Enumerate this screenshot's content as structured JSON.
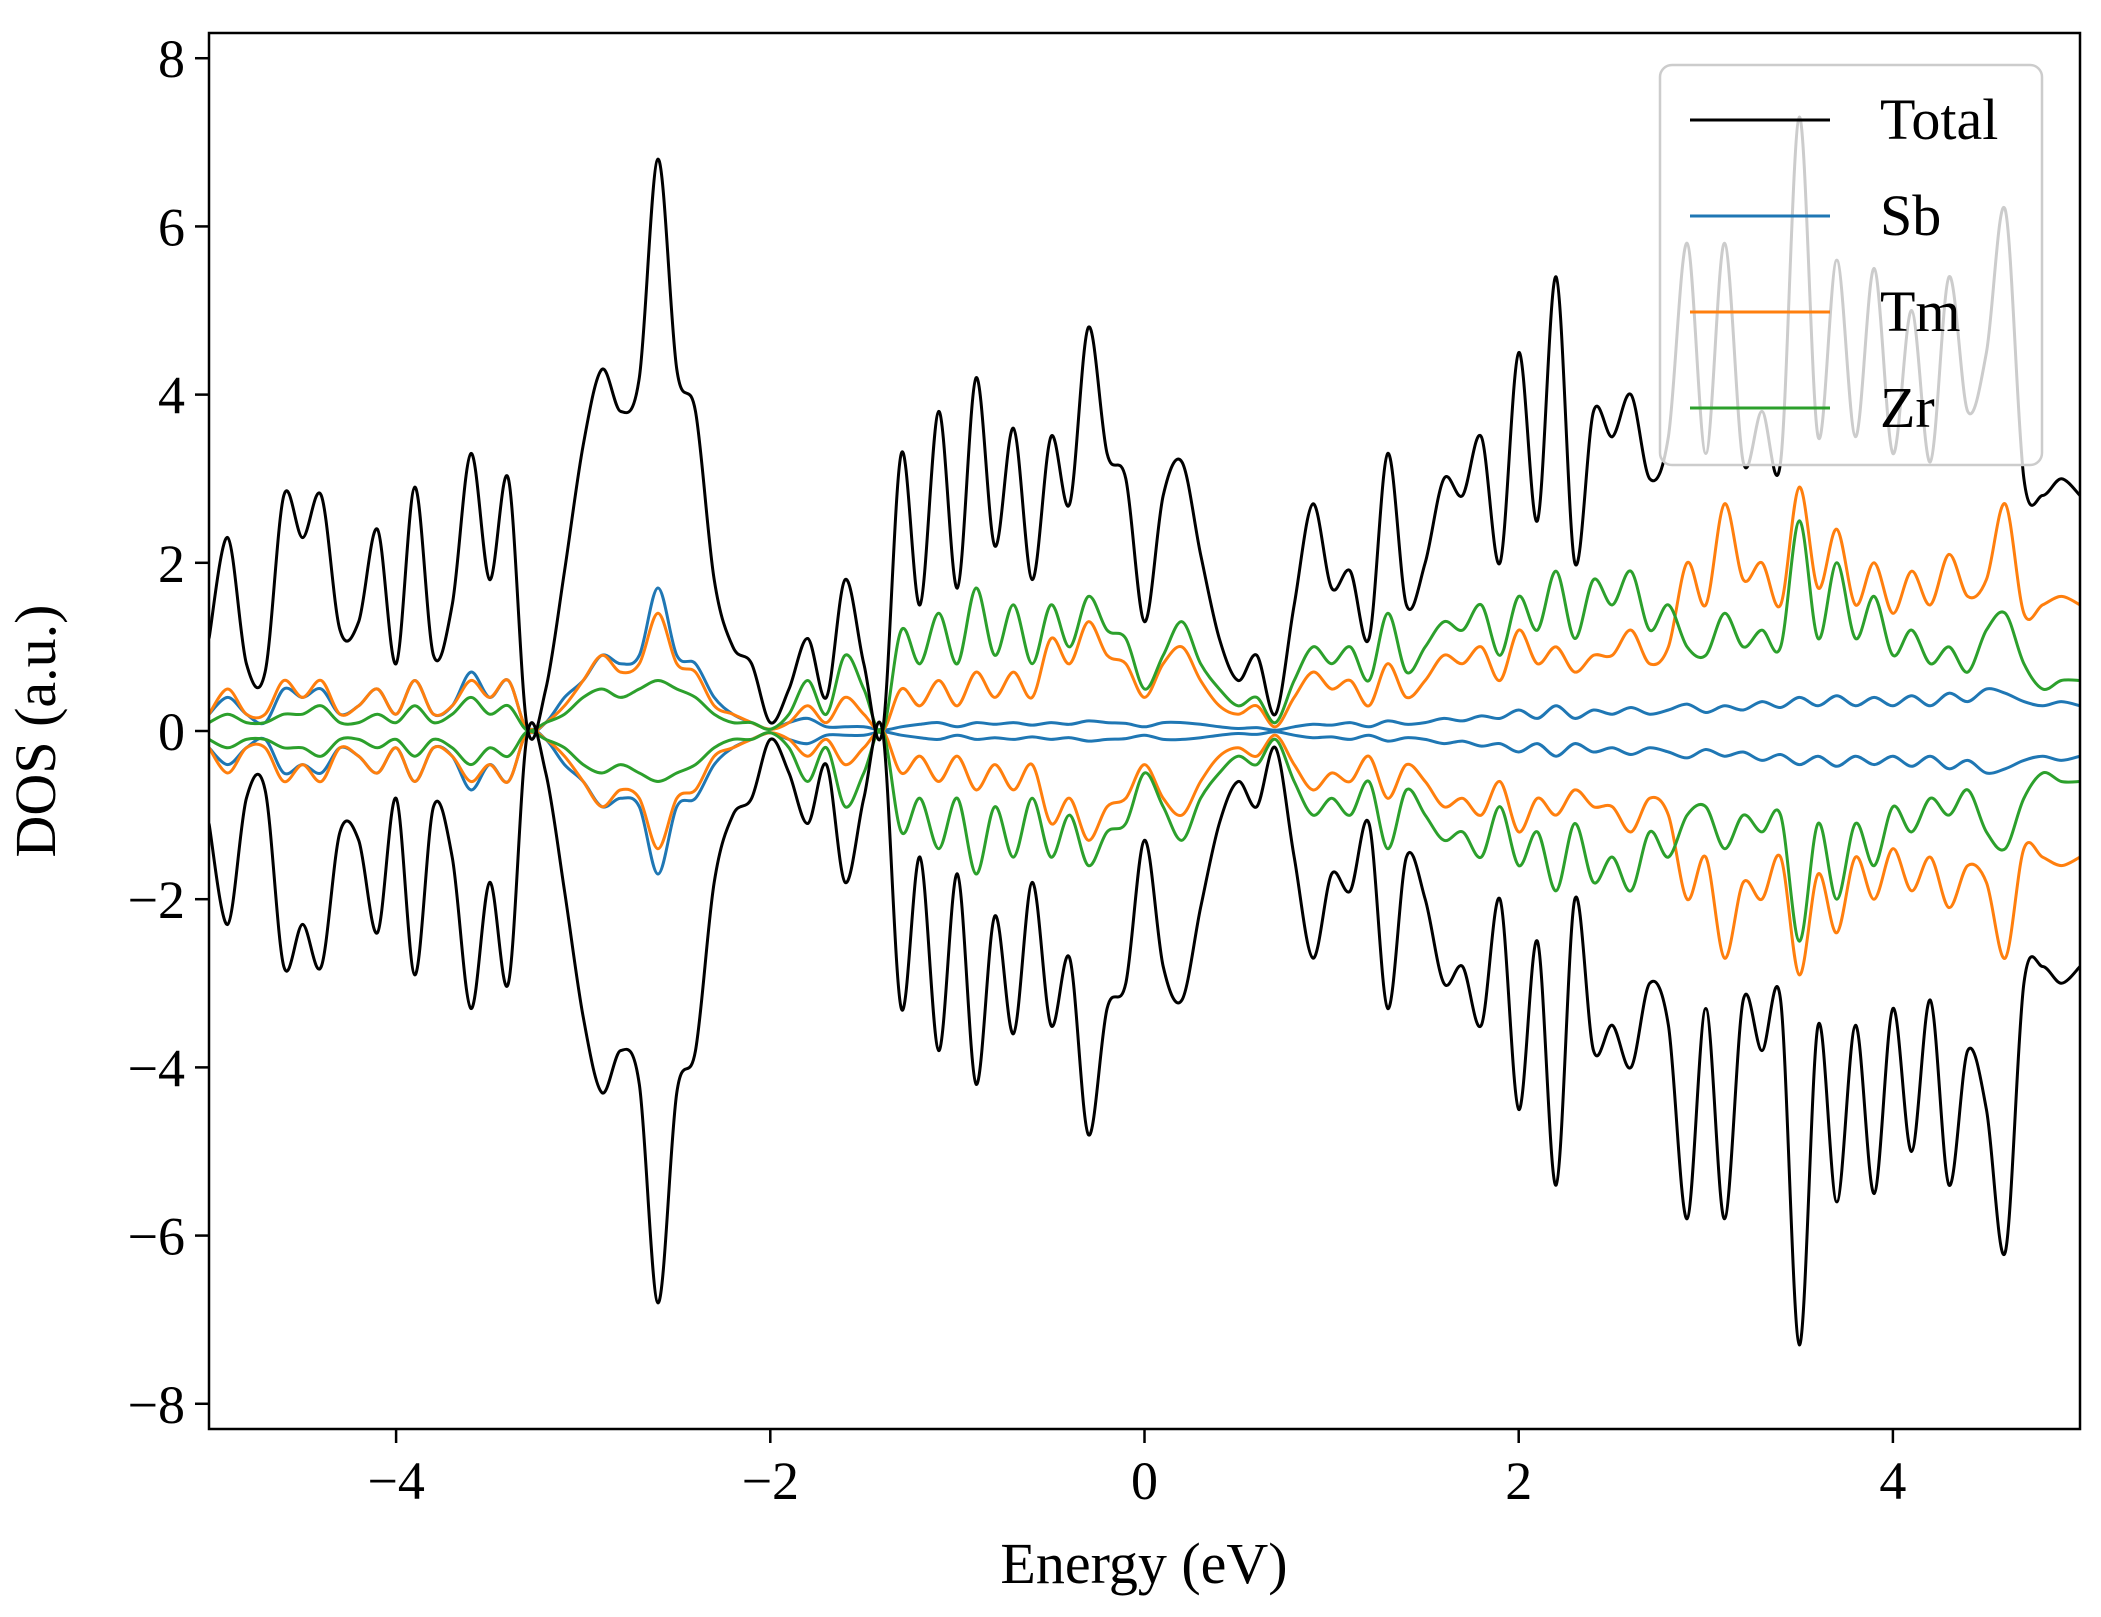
{
  "chart_data": {
    "type": "line",
    "title": "",
    "xlabel": "Energy (eV)",
    "ylabel": "DOS (a.u.)",
    "xlim": [
      -5,
      5
    ],
    "ylim": [
      -8.3,
      8.3
    ],
    "xticks": [
      -4,
      -2,
      0,
      2,
      4
    ],
    "xtick_labels": [
      "−4",
      "−2",
      "0",
      "2",
      "4"
    ],
    "yticks": [
      -8,
      -6,
      -4,
      -2,
      0,
      2,
      4,
      6,
      8
    ],
    "ytick_labels": [
      "−8",
      "−6",
      "−4",
      "−2",
      "0",
      "2",
      "4",
      "6",
      "8"
    ],
    "grid": false,
    "legend_position": "top-right",
    "mirrored": true,
    "x": [
      -5.0,
      -4.9,
      -4.8,
      -4.7,
      -4.6,
      -4.5,
      -4.4,
      -4.3,
      -4.2,
      -4.1,
      -4.0,
      -3.9,
      -3.8,
      -3.7,
      -3.6,
      -3.5,
      -3.4,
      -3.3,
      -3.2,
      -3.1,
      -3.0,
      -2.9,
      -2.8,
      -2.7,
      -2.6,
      -2.5,
      -2.4,
      -2.3,
      -2.2,
      -2.1,
      -2.0,
      -1.9,
      -1.8,
      -1.7,
      -1.6,
      -1.5,
      -1.4,
      -1.3,
      -1.2,
      -1.1,
      -1.0,
      -0.9,
      -0.8,
      -0.7,
      -0.6,
      -0.5,
      -0.4,
      -0.3,
      -0.2,
      -0.1,
      0.0,
      0.1,
      0.2,
      0.3,
      0.4,
      0.5,
      0.6,
      0.7,
      0.8,
      0.9,
      1.0,
      1.1,
      1.2,
      1.3,
      1.4,
      1.5,
      1.6,
      1.7,
      1.8,
      1.9,
      2.0,
      2.1,
      2.2,
      2.3,
      2.4,
      2.5,
      2.6,
      2.7,
      2.8,
      2.9,
      3.0,
      3.1,
      3.2,
      3.3,
      3.4,
      3.5,
      3.6,
      3.7,
      3.8,
      3.9,
      4.0,
      4.1,
      4.2,
      4.3,
      4.4,
      4.5,
      4.6,
      4.7,
      4.8,
      4.9,
      5.0
    ],
    "series": [
      {
        "name": "Total",
        "color": "#000000",
        "values": [
          1.1,
          2.3,
          0.8,
          0.7,
          2.8,
          2.3,
          2.8,
          1.2,
          1.3,
          2.4,
          0.8,
          2.9,
          0.9,
          1.5,
          3.3,
          1.8,
          3.0,
          0.05,
          0.5,
          1.9,
          3.4,
          4.3,
          3.8,
          4.2,
          6.8,
          4.3,
          3.8,
          1.8,
          1.0,
          0.8,
          0.1,
          0.5,
          1.1,
          0.4,
          1.8,
          0.8,
          0.0,
          3.3,
          1.5,
          3.8,
          1.7,
          4.2,
          2.2,
          3.6,
          1.8,
          3.5,
          2.7,
          4.8,
          3.3,
          3.0,
          1.3,
          2.8,
          3.2,
          2.1,
          1.1,
          0.6,
          0.9,
          0.2,
          1.5,
          2.7,
          1.7,
          1.9,
          1.1,
          3.3,
          1.5,
          2.0,
          3.0,
          2.8,
          3.5,
          2.0,
          4.5,
          2.5,
          5.4,
          2.0,
          3.8,
          3.5,
          4.0,
          3.0,
          3.5,
          5.8,
          3.3,
          5.8,
          3.2,
          3.8,
          3.2,
          7.3,
          3.5,
          5.6,
          3.5,
          5.5,
          3.3,
          5.0,
          3.2,
          5.4,
          3.8,
          4.5,
          6.2,
          3.0,
          2.8,
          3.0,
          2.8
        ]
      },
      {
        "name": "Sb",
        "color": "#1f77b4",
        "values": [
          0.2,
          0.4,
          0.2,
          0.1,
          0.5,
          0.4,
          0.5,
          0.2,
          0.3,
          0.5,
          0.2,
          0.6,
          0.2,
          0.3,
          0.7,
          0.4,
          0.6,
          0.01,
          0.1,
          0.4,
          0.6,
          0.9,
          0.8,
          0.9,
          1.7,
          0.9,
          0.8,
          0.4,
          0.2,
          0.1,
          0.02,
          0.1,
          0.15,
          0.05,
          0.05,
          0.05,
          0.01,
          0.05,
          0.08,
          0.1,
          0.05,
          0.1,
          0.08,
          0.1,
          0.07,
          0.1,
          0.08,
          0.12,
          0.1,
          0.09,
          0.05,
          0.1,
          0.1,
          0.08,
          0.05,
          0.03,
          0.04,
          0.01,
          0.05,
          0.08,
          0.07,
          0.1,
          0.05,
          0.12,
          0.08,
          0.1,
          0.15,
          0.12,
          0.18,
          0.15,
          0.25,
          0.15,
          0.3,
          0.15,
          0.25,
          0.2,
          0.28,
          0.2,
          0.25,
          0.32,
          0.22,
          0.3,
          0.25,
          0.35,
          0.28,
          0.4,
          0.3,
          0.42,
          0.3,
          0.4,
          0.3,
          0.42,
          0.3,
          0.45,
          0.35,
          0.5,
          0.45,
          0.35,
          0.3,
          0.35,
          0.3
        ]
      },
      {
        "name": "Tm",
        "color": "#ff7f0e",
        "values": [
          0.2,
          0.5,
          0.2,
          0.2,
          0.6,
          0.4,
          0.6,
          0.2,
          0.3,
          0.5,
          0.2,
          0.6,
          0.2,
          0.3,
          0.6,
          0.4,
          0.6,
          0.01,
          0.1,
          0.3,
          0.6,
          0.9,
          0.7,
          0.8,
          1.4,
          0.8,
          0.7,
          0.3,
          0.2,
          0.1,
          0.02,
          0.1,
          0.3,
          0.1,
          0.4,
          0.2,
          0.0,
          0.5,
          0.3,
          0.6,
          0.3,
          0.7,
          0.4,
          0.7,
          0.4,
          1.1,
          0.8,
          1.3,
          0.9,
          0.8,
          0.4,
          0.8,
          1.0,
          0.6,
          0.3,
          0.2,
          0.3,
          0.05,
          0.4,
          0.7,
          0.5,
          0.6,
          0.3,
          0.8,
          0.4,
          0.6,
          0.9,
          0.8,
          1.0,
          0.6,
          1.2,
          0.8,
          1.0,
          0.7,
          0.9,
          0.9,
          1.2,
          0.8,
          1.0,
          2.0,
          1.5,
          2.7,
          1.8,
          2.0,
          1.5,
          2.9,
          1.7,
          2.4,
          1.5,
          2.0,
          1.4,
          1.9,
          1.5,
          2.1,
          1.6,
          1.8,
          2.7,
          1.4,
          1.5,
          1.6,
          1.5
        ]
      },
      {
        "name": "Zr",
        "color": "#2ca02c",
        "values": [
          0.1,
          0.2,
          0.1,
          0.1,
          0.2,
          0.2,
          0.3,
          0.1,
          0.1,
          0.2,
          0.1,
          0.3,
          0.1,
          0.2,
          0.4,
          0.2,
          0.3,
          0.01,
          0.1,
          0.2,
          0.4,
          0.5,
          0.4,
          0.5,
          0.6,
          0.5,
          0.4,
          0.2,
          0.1,
          0.1,
          0.02,
          0.2,
          0.6,
          0.2,
          0.9,
          0.5,
          0.0,
          1.2,
          0.8,
          1.4,
          0.8,
          1.7,
          0.9,
          1.5,
          0.8,
          1.5,
          1.0,
          1.6,
          1.2,
          1.1,
          0.5,
          0.9,
          1.3,
          0.8,
          0.5,
          0.3,
          0.4,
          0.1,
          0.6,
          1.0,
          0.8,
          1.0,
          0.6,
          1.4,
          0.7,
          1.0,
          1.3,
          1.2,
          1.5,
          0.9,
          1.6,
          1.2,
          1.9,
          1.1,
          1.8,
          1.5,
          1.9,
          1.2,
          1.5,
          1.0,
          0.9,
          1.4,
          1.0,
          1.2,
          1.0,
          2.5,
          1.1,
          2.0,
          1.1,
          1.6,
          0.9,
          1.2,
          0.8,
          1.0,
          0.7,
          1.2,
          1.4,
          0.8,
          0.5,
          0.6,
          0.6
        ]
      }
    ]
  }
}
